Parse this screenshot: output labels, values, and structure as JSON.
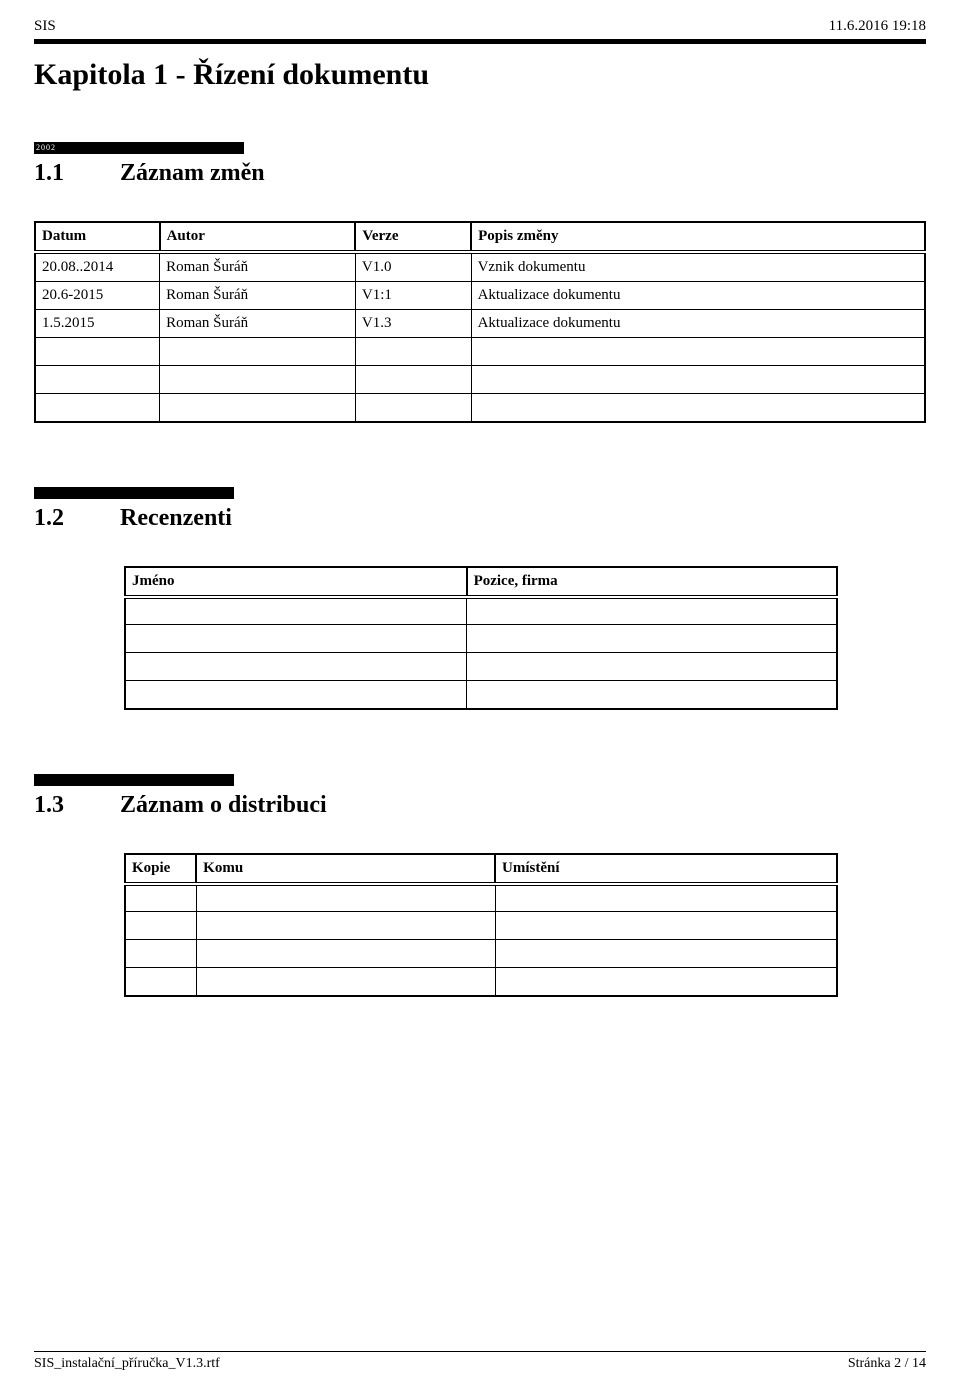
{
  "header": {
    "left": "SIS",
    "right": "11.6.2016 19:18"
  },
  "chapter": {
    "title": "Kapitola 1 - Řízení dokumentu"
  },
  "bar2002": "2002",
  "section11": {
    "num": "1.1",
    "title": "Záznam změn"
  },
  "table1": {
    "headers": [
      "Datum",
      "Autor",
      "Verze",
      "Popis změny"
    ],
    "rows": [
      [
        "20.08..2014",
        "Roman Šuráň",
        "V1.0",
        "Vznik dokumentu"
      ],
      [
        "20.6-2015",
        "Roman Šuráň",
        "V1:1",
        "Aktualizace dokumentu"
      ],
      [
        "1.5.2015",
        "Roman Šuráň",
        "V1.3",
        "Aktualizace dokumentu"
      ],
      [
        "",
        "",
        "",
        ""
      ],
      [
        "",
        "",
        "",
        ""
      ],
      [
        "",
        "",
        "",
        ""
      ]
    ]
  },
  "section12": {
    "num": "1.2",
    "title": "Recenzenti"
  },
  "table2": {
    "headers": [
      "Jméno",
      "Pozice, firma"
    ],
    "rows": [
      [
        "",
        ""
      ],
      [
        "",
        ""
      ],
      [
        "",
        ""
      ],
      [
        "",
        ""
      ]
    ]
  },
  "section13": {
    "num": "1.3",
    "title": "Záznam o distribuci"
  },
  "table3": {
    "headers": [
      "Kopie",
      "Komu",
      "Umístění"
    ],
    "rows": [
      [
        "",
        "",
        ""
      ],
      [
        "",
        "",
        ""
      ],
      [
        "",
        "",
        ""
      ],
      [
        "",
        "",
        ""
      ]
    ]
  },
  "footer": {
    "left": "SIS_instalační_příručka_V1.3.rtf",
    "right": "Stránka 2 / 14"
  }
}
